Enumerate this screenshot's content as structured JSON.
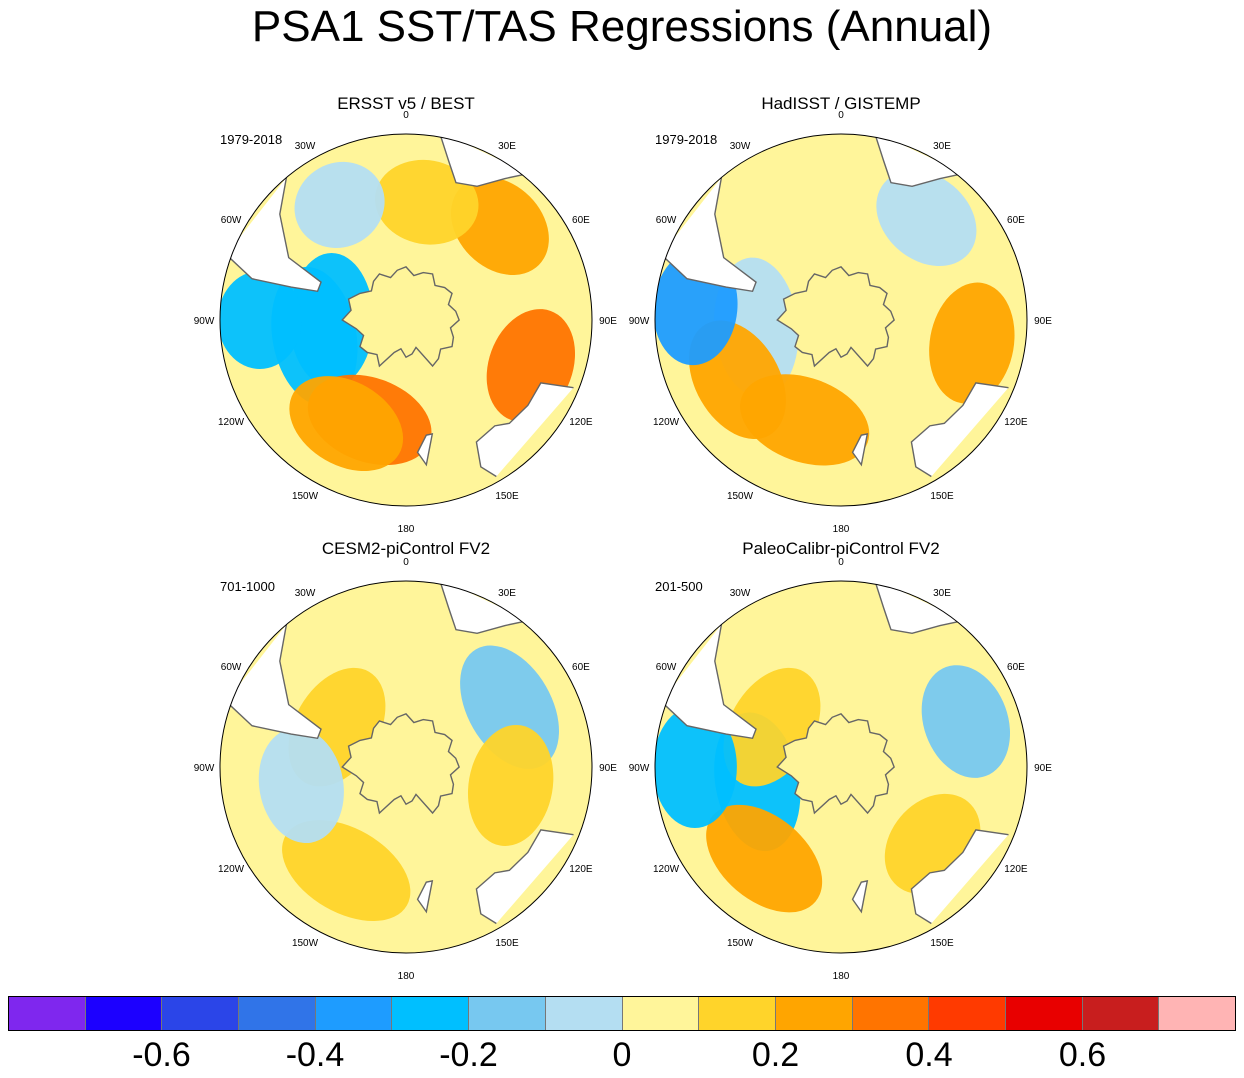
{
  "title": "PSA1 SST/TAS Regressions (Annual)",
  "chart_data": {
    "type": "heatmap",
    "projection": "south-polar-stereographic",
    "panels": [
      {
        "title": "ERSST v5 / BEST",
        "period": "1979-2018",
        "features": [
          {
            "lon": -100,
            "lat": -55,
            "value": -0.3
          },
          {
            "lon": -90,
            "lat": -62,
            "value": -0.25
          },
          {
            "lon": -160,
            "lat": -50,
            "value": 0.3
          },
          {
            "lon": -150,
            "lat": -45,
            "value": 0.25
          },
          {
            "lon": 110,
            "lat": -40,
            "value": 0.3
          },
          {
            "lon": 45,
            "lat": -40,
            "value": 0.2
          },
          {
            "lon": 10,
            "lat": -45,
            "value": 0.15
          },
          {
            "lon": -90,
            "lat": -35,
            "value": -0.3
          },
          {
            "lon": -30,
            "lat": -40,
            "value": -0.1
          }
        ]
      },
      {
        "title": "HadISST / GISTEMP",
        "period": "1979-2018",
        "features": [
          {
            "lon": -95,
            "lat": -58,
            "value": -0.1
          },
          {
            "lon": -160,
            "lat": -50,
            "value": 0.25
          },
          {
            "lon": -120,
            "lat": -45,
            "value": 0.2
          },
          {
            "lon": 100,
            "lat": -40,
            "value": 0.2
          },
          {
            "lon": -85,
            "lat": -35,
            "value": -0.35
          },
          {
            "lon": 40,
            "lat": -40,
            "value": -0.1
          }
        ]
      },
      {
        "title": "CESM2-piControl FV2",
        "period": "701-1000",
        "features": [
          {
            "lon": -150,
            "lat": -45,
            "value": 0.15
          },
          {
            "lon": 60,
            "lat": -45,
            "value": -0.15
          },
          {
            "lon": -60,
            "lat": -60,
            "value": 0.1
          },
          {
            "lon": 100,
            "lat": -50,
            "value": 0.1
          },
          {
            "lon": -100,
            "lat": -50,
            "value": -0.05
          }
        ]
      },
      {
        "title": "PaleoCalibr-piControl FV2",
        "period": "201-500",
        "features": [
          {
            "lon": -100,
            "lat": -58,
            "value": -0.3
          },
          {
            "lon": -140,
            "lat": -45,
            "value": 0.25
          },
          {
            "lon": -60,
            "lat": -60,
            "value": 0.15
          },
          {
            "lon": -90,
            "lat": -35,
            "value": -0.25
          },
          {
            "lon": 70,
            "lat": -40,
            "value": -0.15
          },
          {
            "lon": 130,
            "lat": -45,
            "value": 0.1
          }
        ]
      }
    ],
    "lon_labels": [
      "0",
      "30E",
      "60E",
      "90E",
      "120E",
      "150E",
      "180",
      "150W",
      "120W",
      "90W",
      "60W",
      "30W"
    ],
    "colorbar": {
      "bins": [
        -0.8,
        -0.7,
        -0.6,
        -0.5,
        -0.4,
        -0.3,
        -0.2,
        -0.1,
        0,
        0.1,
        0.2,
        0.3,
        0.4,
        0.5,
        0.6,
        0.7,
        0.8
      ],
      "colors": [
        "#7f27ee",
        "#1c00ff",
        "#2b45e8",
        "#3074e8",
        "#1e9cff",
        "#00bfff",
        "#77c8f0",
        "#b4def2",
        "#fff59a",
        "#ffd42a",
        "#ffa500",
        "#ff7400",
        "#ff3a00",
        "#e80000",
        "#c81e1e",
        "#ffb4b4"
      ],
      "tick_labels": [
        "-0.6",
        "-0.4",
        "-0.2",
        "0",
        "0.2",
        "0.4",
        "0.6"
      ]
    }
  }
}
